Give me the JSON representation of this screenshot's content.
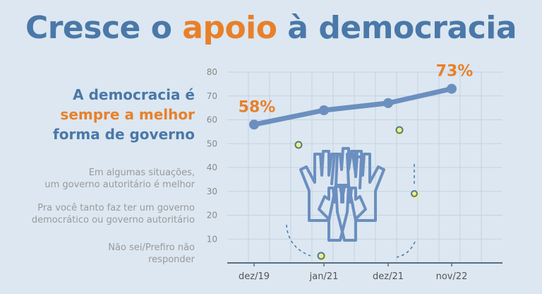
{
  "title": {
    "part1": "Cresce o ",
    "highlight": "apoio",
    "part2": " à democracia"
  },
  "statement": {
    "line1": "A democracia é",
    "line2": "sempre a melhor",
    "line3": "forma de governo"
  },
  "other_options": [
    {
      "line1": "Em algumas situações,",
      "line2": "um governo autoritário é melhor"
    },
    {
      "line1": "Pra você tanto faz ter um governo",
      "line2": "democrático ou governo autoritário"
    },
    {
      "line1": "Não sei/Prefiro não",
      "line2": "responder"
    }
  ],
  "colors": {
    "background": "#dce7f1",
    "blue": "#4a78a8",
    "orange": "#e8802a",
    "grey_text": "#9a9a9a",
    "line": "#6b8fbf",
    "grid": "#c5d3e0"
  },
  "illustration": "raised-hands-icon",
  "chart_data": {
    "type": "line",
    "title": "Cresce o apoio à democracia",
    "categories": [
      "dez/19",
      "jan/21",
      "dez/21",
      "nov/22"
    ],
    "x_tick_labels": [
      "dez/19",
      "jan/21",
      "dez/21",
      "nov/22"
    ],
    "series": [
      {
        "name": "A democracia é sempre a melhor forma de governo",
        "values": [
          58,
          64,
          67,
          73
        ]
      }
    ],
    "data_labels": [
      {
        "index": 0,
        "text": "58%"
      },
      {
        "index": 3,
        "text": "73%"
      }
    ],
    "y_ticks": [
      10,
      20,
      30,
      40,
      50,
      60,
      70,
      80
    ],
    "ylim": [
      0,
      80
    ],
    "grid": true,
    "xlabel": "",
    "ylabel": ""
  }
}
